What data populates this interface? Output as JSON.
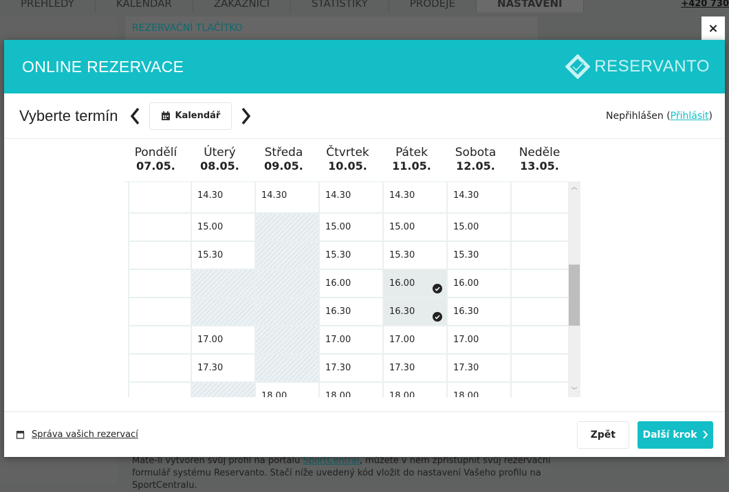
{
  "background": {
    "nav": [
      "PŘEHLEDY",
      "KALENDÁŘ",
      "ZÁKAZNÍCI",
      "STATISTIKY",
      "PRODEJE",
      "NASTAVENÍ"
    ],
    "phone": "+420 730",
    "panel_title": "REZERVAČNÍ TLAČÍTKO",
    "text_before": "Máte-li vytvořen svůj profil na portálu ",
    "text_link": "SportCentral",
    "text_after": ", můžete v něm zpřístupnit svůj rezervační formulář systému Reservanto. Stačí níže uvedený kód vložit do nastavení Vašeho profilu na SportCentralu."
  },
  "modal": {
    "title": "ONLINE REZERVACE",
    "logo_text": "RESERVANTO",
    "close_label": "×",
    "accent": "#13bec6",
    "toolbar": {
      "title": "Vyberte termín",
      "calendar_label": "Kalendář",
      "login_status": "Nepřihlášen (",
      "login_link": "Přihlásit",
      "login_close": ")"
    },
    "days": [
      {
        "name": "Pondělí",
        "date": "07.05.",
        "slots": [
          "",
          "",
          "",
          "",
          "",
          "",
          "",
          ""
        ]
      },
      {
        "name": "Úterý",
        "date": "08.05.",
        "slots": [
          "14.30",
          "15.00",
          "15.30",
          "#u",
          "#u",
          "17.00",
          "17.30",
          "#u"
        ]
      },
      {
        "name": "Středa",
        "date": "09.05.",
        "slots": [
          "14.30",
          "#u",
          "#u",
          "#u",
          "#u",
          "#u",
          "#u",
          "18.00"
        ]
      },
      {
        "name": "Čtvrtek",
        "date": "10.05.",
        "slots": [
          "14.30",
          "15.00",
          "15.30",
          "16.00",
          "16.30",
          "17.00",
          "17.30",
          "18.00"
        ]
      },
      {
        "name": "Pátek",
        "date": "11.05.",
        "slots": [
          "14.30",
          "15.00",
          "15.30",
          "16.00*",
          "16.30*",
          "17.00",
          "17.30",
          "18.00"
        ]
      },
      {
        "name": "Sobota",
        "date": "12.05.",
        "slots": [
          "14.30",
          "15.00",
          "15.30",
          "16.00",
          "16.30",
          "17.00",
          "17.30",
          "18.00"
        ]
      },
      {
        "name": "Neděle",
        "date": "13.05.",
        "slots": [
          "",
          "",
          "",
          "",
          "",
          "",
          "",
          ""
        ]
      }
    ],
    "footer": {
      "manage_label": "Správa vašich rezervací",
      "back_label": "Zpět",
      "next_label": "Další krok"
    }
  }
}
